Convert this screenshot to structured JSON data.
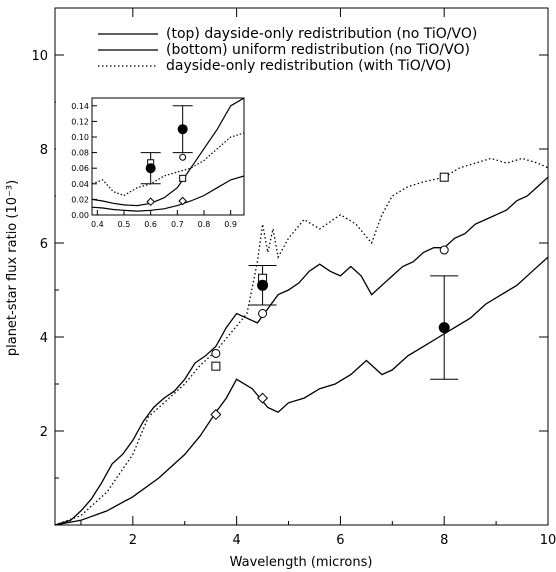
{
  "chart_data": {
    "type": "line",
    "xlabel": "Wavelength (microns)",
    "ylabel": "planet-star flux ratio (10⁻³)",
    "xlim": [
      0.5,
      10
    ],
    "ylim": [
      0,
      11
    ],
    "x_ticks": [
      2,
      4,
      6,
      8,
      10
    ],
    "y_ticks": [
      2,
      4,
      6,
      8,
      10
    ],
    "legend_position": "top-right",
    "grid": false,
    "series": [
      {
        "name": "(top) dayside-only redistribution (no TiO/VO)",
        "style": "solid",
        "x": [
          0.5,
          0.8,
          1.0,
          1.2,
          1.4,
          1.6,
          1.8,
          2.0,
          2.2,
          2.4,
          2.6,
          2.8,
          3.0,
          3.2,
          3.4,
          3.6,
          3.8,
          4.0,
          4.2,
          4.4,
          4.6,
          4.8,
          5.0,
          5.2,
          5.4,
          5.6,
          5.8,
          6.0,
          6.2,
          6.4,
          6.6,
          6.8,
          7.0,
          7.2,
          7.4,
          7.6,
          7.8,
          8.0,
          8.2,
          8.4,
          8.6,
          8.8,
          9.0,
          9.2,
          9.4,
          9.6,
          9.8,
          10.0
        ],
        "y": [
          0.0,
          0.1,
          0.3,
          0.55,
          0.9,
          1.3,
          1.5,
          1.8,
          2.2,
          2.5,
          2.7,
          2.85,
          3.1,
          3.45,
          3.6,
          3.8,
          4.2,
          4.5,
          4.4,
          4.3,
          4.6,
          4.9,
          5.0,
          5.15,
          5.4,
          5.55,
          5.4,
          5.3,
          5.5,
          5.3,
          4.9,
          5.1,
          5.3,
          5.5,
          5.6,
          5.8,
          5.9,
          5.9,
          6.1,
          6.2,
          6.4,
          6.5,
          6.6,
          6.7,
          6.9,
          7.0,
          7.2,
          7.4
        ]
      },
      {
        "name": "(bottom) uniform redistribution (no TiO/VO)",
        "style": "solid",
        "x": [
          0.5,
          1.0,
          1.5,
          2.0,
          2.5,
          3.0,
          3.3,
          3.6,
          3.8,
          4.0,
          4.3,
          4.6,
          4.8,
          5.0,
          5.3,
          5.6,
          5.9,
          6.2,
          6.5,
          6.8,
          7.0,
          7.3,
          7.6,
          7.9,
          8.2,
          8.5,
          8.8,
          9.1,
          9.4,
          9.7,
          10.0
        ],
        "y": [
          0.0,
          0.1,
          0.3,
          0.6,
          1.0,
          1.5,
          1.9,
          2.4,
          2.7,
          3.1,
          2.9,
          2.5,
          2.4,
          2.6,
          2.7,
          2.9,
          3.0,
          3.2,
          3.5,
          3.2,
          3.3,
          3.6,
          3.8,
          4.0,
          4.2,
          4.4,
          4.7,
          4.9,
          5.1,
          5.4,
          5.7
        ]
      },
      {
        "name": "dayside-only redistribution (with TiO/VO)",
        "style": "dotted",
        "x": [
          0.5,
          1.0,
          1.5,
          2.0,
          2.3,
          2.6,
          3.0,
          3.3,
          3.6,
          3.9,
          4.2,
          4.4,
          4.5,
          4.6,
          4.7,
          4.8,
          5.0,
          5.3,
          5.6,
          6.0,
          6.3,
          6.6,
          6.8,
          7.0,
          7.3,
          7.6,
          8.0,
          8.3,
          8.6,
          8.9,
          9.2,
          9.5,
          9.8,
          10.0
        ],
        "y": [
          0.0,
          0.2,
          0.7,
          1.5,
          2.3,
          2.6,
          3.0,
          3.4,
          3.7,
          4.1,
          4.5,
          5.6,
          6.4,
          5.8,
          6.3,
          5.7,
          6.1,
          6.5,
          6.3,
          6.6,
          6.4,
          6.0,
          6.6,
          7.0,
          7.2,
          7.3,
          7.4,
          7.6,
          7.7,
          7.8,
          7.7,
          7.8,
          7.7,
          7.6
        ]
      }
    ],
    "observations": [
      {
        "x": 4.5,
        "y": 5.1,
        "err": 0.42
      },
      {
        "x": 8.0,
        "y": 4.2,
        "err": 1.1
      }
    ],
    "model_band_points": {
      "open_circle": [
        {
          "x": 3.6,
          "y": 3.65
        },
        {
          "x": 4.5,
          "y": 4.5
        },
        {
          "x": 8.0,
          "y": 5.85
        }
      ],
      "open_square": [
        {
          "x": 3.6,
          "y": 3.38
        },
        {
          "x": 4.5,
          "y": 5.25
        },
        {
          "x": 8.0,
          "y": 7.4
        }
      ],
      "open_diamond": [
        {
          "x": 3.6,
          "y": 2.35
        },
        {
          "x": 4.5,
          "y": 2.7
        }
      ]
    },
    "inset": {
      "xlim": [
        0.38,
        0.95
      ],
      "ylim": [
        0.0,
        0.15
      ],
      "x_ticks": [
        0.4,
        0.5,
        0.6,
        0.7,
        0.8,
        0.9
      ],
      "x_tick_labels": [
        "0.4",
        "0.5",
        "0.6",
        "0.7",
        "0.8",
        "0.9"
      ],
      "y_ticks": [
        0.0,
        0.02,
        0.04,
        0.06,
        0.08,
        0.1,
        0.12,
        0.14
      ],
      "y_tick_labels": [
        "0.00",
        "0.02",
        "0.04",
        "0.06",
        "0.08",
        "0.10",
        "0.12",
        "0.14"
      ],
      "series": [
        {
          "style": "solid",
          "x": [
            0.38,
            0.42,
            0.46,
            0.5,
            0.55,
            0.6,
            0.65,
            0.7,
            0.75,
            0.8,
            0.85,
            0.9,
            0.95
          ],
          "y": [
            0.02,
            0.018,
            0.015,
            0.013,
            0.012,
            0.015,
            0.022,
            0.035,
            0.06,
            0.085,
            0.11,
            0.14,
            0.15
          ]
        },
        {
          "style": "dotted",
          "x": [
            0.38,
            0.42,
            0.46,
            0.5,
            0.55,
            0.6,
            0.65,
            0.7,
            0.75,
            0.8,
            0.85,
            0.9,
            0.95
          ],
          "y": [
            0.04,
            0.045,
            0.03,
            0.025,
            0.035,
            0.04,
            0.05,
            0.055,
            0.06,
            0.07,
            0.085,
            0.1,
            0.105
          ]
        },
        {
          "style": "solid",
          "x": [
            0.38,
            0.42,
            0.46,
            0.5,
            0.55,
            0.6,
            0.65,
            0.7,
            0.75,
            0.8,
            0.85,
            0.9,
            0.95
          ],
          "y": [
            0.01,
            0.009,
            0.007,
            0.006,
            0.005,
            0.006,
            0.008,
            0.012,
            0.018,
            0.025,
            0.035,
            0.045,
            0.05
          ]
        }
      ],
      "observations": [
        {
          "x": 0.6,
          "y": 0.06,
          "err": 0.02
        },
        {
          "x": 0.72,
          "y": 0.11,
          "err": 0.03
        }
      ],
      "open_circle": [
        {
          "x": 0.6,
          "y": 0.058
        },
        {
          "x": 0.72,
          "y": 0.074
        }
      ],
      "open_square": [
        {
          "x": 0.6,
          "y": 0.067
        },
        {
          "x": 0.72,
          "y": 0.047
        }
      ],
      "open_diamond": [
        {
          "x": 0.6,
          "y": 0.017
        },
        {
          "x": 0.72,
          "y": 0.018
        }
      ]
    }
  }
}
